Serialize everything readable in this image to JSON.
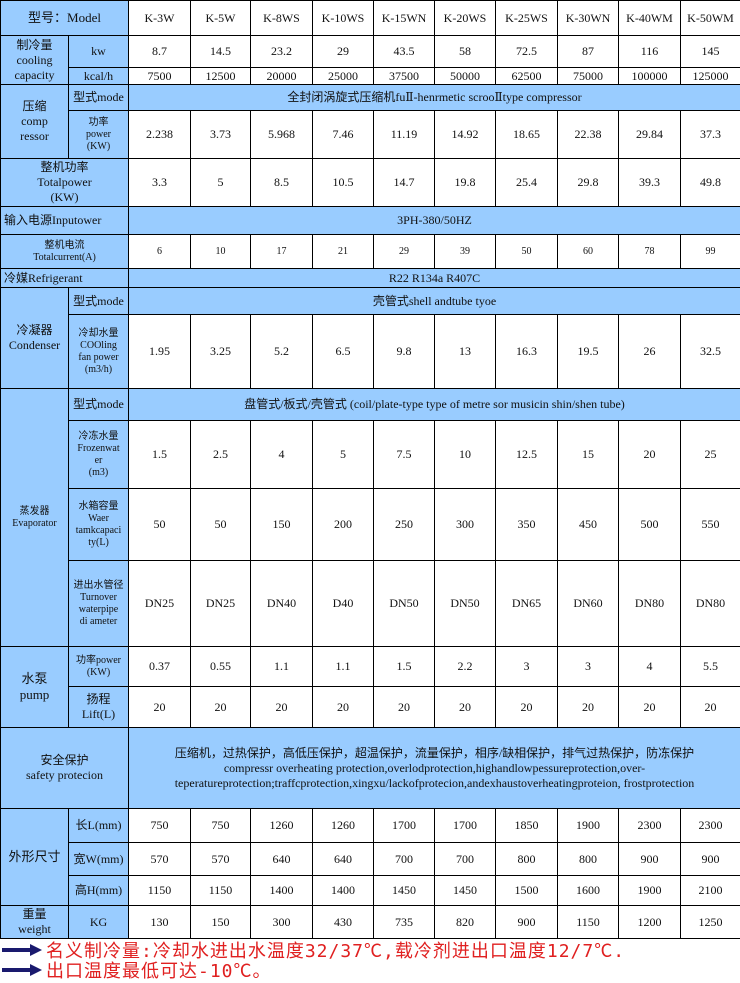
{
  "header": {
    "label": "型号：Model"
  },
  "models": [
    "K-3W",
    "K-5W",
    "K-8WS",
    "K-10WS",
    "K-15WN",
    "K-20WS",
    "K-25WS",
    "K-30WN",
    "K-40WM",
    "K-50WM"
  ],
  "cooling": {
    "label": "制冷量\ncooling\ncapacity",
    "kw": {
      "unit": "kw",
      "values": [
        "8.7",
        "14.5",
        "23.2",
        "29",
        "43.5",
        "58",
        "72.5",
        "87",
        "116",
        "145"
      ]
    },
    "kcal": {
      "unit": "kcal/h",
      "values": [
        "7500",
        "12500",
        "20000",
        "25000",
        "37500",
        "50000",
        "62500",
        "75000",
        "100000",
        "125000"
      ]
    }
  },
  "compressor": {
    "label": "压缩\ncomp\nressor",
    "mode_label": "型式mode",
    "mode_value": "全封闭涡旋式压缩机fuⅡ-henrmetic scrooⅡtype compressor",
    "power_label": "功率\npower\n(KW)",
    "power_values": [
      "2.238",
      "3.73",
      "5.968",
      "7.46",
      "11.19",
      "14.92",
      "18.65",
      "22.38",
      "29.84",
      "37.3"
    ]
  },
  "total_power": {
    "label": "整机功率\nTotalpower\n(KW)",
    "values": [
      "3.3",
      "5",
      "8.5",
      "10.5",
      "14.7",
      "19.8",
      "25.4",
      "29.8",
      "39.3",
      "49.8"
    ]
  },
  "input_power": {
    "label": "输入电源Inputower",
    "value": "3PH-380/50HZ"
  },
  "total_current": {
    "label": "整机电流\nTotalcurrent(A)",
    "values": [
      "6",
      "10",
      "17",
      "21",
      "29",
      "39",
      "50",
      "60",
      "78",
      "99"
    ]
  },
  "refrigerant": {
    "label": "冷媒Refrigerant",
    "value": "R22 R134a R407C"
  },
  "condenser": {
    "label": "冷凝器\nCondenser",
    "mode_label": "型式mode",
    "mode_value": "壳管式shell andtube tyoe",
    "water_label": "冷却水量\nCOOling\nfan power\n(m3/h)",
    "water_values": [
      "1.95",
      "3.25",
      "5.2",
      "6.5",
      "9.8",
      "13",
      "16.3",
      "19.5",
      "26",
      "32.5"
    ]
  },
  "evaporator": {
    "label": "蒸发器\nEvaporator",
    "mode_label": "型式mode",
    "mode_value": "盘管式/板式/壳管式 (coil/plate-type type of metre sor musicin shin/shen tube)",
    "frozen_label": "冷冻水量\nFrozenwat\ner\n(m3)",
    "frozen_values": [
      "1.5",
      "2.5",
      "4",
      "5",
      "7.5",
      "10",
      "12.5",
      "15",
      "20",
      "25"
    ],
    "tank_label": "水箱容量\nWaer\ntamkcapaci\nty(L)",
    "tank_values": [
      "50",
      "50",
      "150",
      "200",
      "250",
      "300",
      "350",
      "450",
      "500",
      "550"
    ],
    "pipe_label": "进出水管径\nTurnover\nwaterpipe\ndi ameter",
    "pipe_values": [
      "DN25",
      "DN25",
      "DN40",
      "D40",
      "DN50",
      "DN50",
      "DN65",
      "DN60",
      "DN80",
      "DN80"
    ]
  },
  "pump": {
    "label": "水泵\npump",
    "power_label": "功率power\n(KW)",
    "power_values": [
      "0.37",
      "0.55",
      "1.1",
      "1.1",
      "1.5",
      "2.2",
      "3",
      "3",
      "4",
      "5.5"
    ],
    "lift_label": "扬程\nLift(L)",
    "lift_values": [
      "20",
      "20",
      "20",
      "20",
      "20",
      "20",
      "20",
      "20",
      "20",
      "20"
    ]
  },
  "safety": {
    "label": "安全保护\nsafety protecion",
    "value": "压缩机，过热保护，高低压保护，超温保护，流量保护，相序/缺相保护，排气过热保护，防冻保护\ncompressr overheating protection,overlodprotection,highandlowpessureprotection,over-teperatureprotection;traffcprotection,xingxu/lackofprotecion,andexhaustoverheatingproteion,     frostprotection"
  },
  "dimensions": {
    "label": "外形尺寸",
    "length_label": "长L(mm)",
    "length_values": [
      "750",
      "750",
      "1260",
      "1260",
      "1700",
      "1700",
      "1850",
      "1900",
      "2300",
      "2300"
    ],
    "width_label": "宽W(mm)",
    "width_values": [
      "570",
      "570",
      "640",
      "640",
      "700",
      "700",
      "800",
      "800",
      "900",
      "900"
    ],
    "height_label": "高H(mm)",
    "height_values": [
      "1150",
      "1150",
      "1400",
      "1400",
      "1450",
      "1450",
      "1500",
      "1600",
      "1900",
      "2100"
    ]
  },
  "weight": {
    "label": "重量\nweight",
    "unit": "KG",
    "values": [
      "130",
      "150",
      "300",
      "430",
      "735",
      "820",
      "900",
      "1150",
      "1200",
      "1250"
    ]
  },
  "notes": [
    {
      "icon": "arrow-right-icon",
      "text": "名义制冷量:冷却水进出水温度32/37℃,载冷剂进出口温度12/7℃."
    },
    {
      "icon": "arrow-right-icon",
      "text": "出口温度最低可达-10℃。"
    }
  ],
  "colors": {
    "header_fill": "#99ccff",
    "note_text": "#e02020",
    "arrow": "#1a1a6e"
  }
}
